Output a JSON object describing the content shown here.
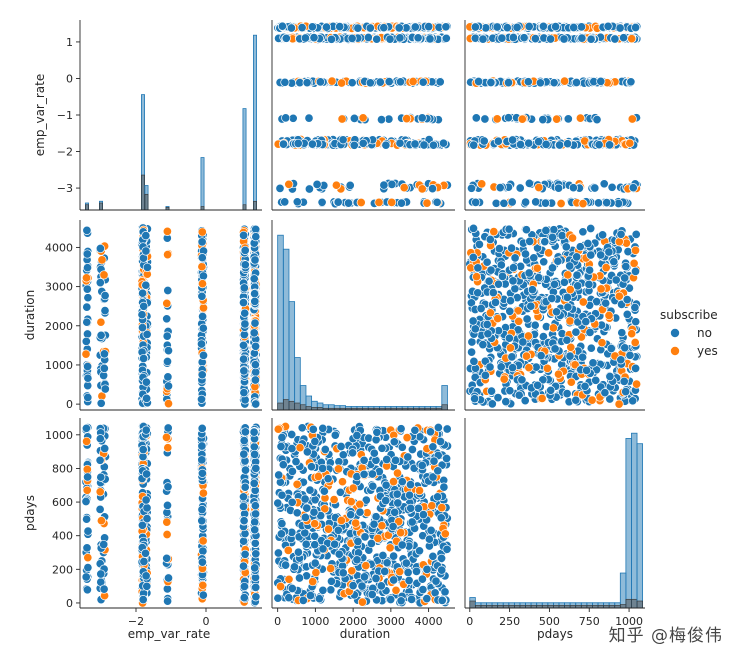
{
  "colors": {
    "no": "#1f77b4",
    "yes": "#ff7f0e",
    "axis": "#262626"
  },
  "watermark": "知乎 @梅俊伟",
  "chart_data": {
    "type": "scatter",
    "kind": "pairplot",
    "variables": [
      "emp_var_rate",
      "duration",
      "pdays"
    ],
    "hue": "subscribe",
    "legend": {
      "title": "subscribe",
      "entries": [
        {
          "label": "no",
          "color": "#1f77b4"
        },
        {
          "label": "yes",
          "color": "#ff7f0e"
        }
      ],
      "placement": "center-right"
    },
    "axes": {
      "emp_var_rate": {
        "label": "emp_var_rate",
        "range": [
          -3.6,
          1.6
        ],
        "ticks": [
          -3,
          -2,
          -1,
          0,
          1
        ],
        "tick_labels": [
          "−3",
          "−2",
          "−1",
          "0",
          "1"
        ],
        "bottom_ticks": [
          -2,
          0
        ],
        "bottom_tick_labels": [
          "−2",
          "0"
        ],
        "levels": [
          -3.4,
          -3.0,
          -2.9,
          -1.8,
          -1.7,
          -1.1,
          -0.1,
          1.1,
          1.4
        ]
      },
      "duration": {
        "label": "duration",
        "range": [
          -150,
          4700
        ],
        "ticks": [
          0,
          1000,
          2000,
          3000,
          4000
        ],
        "tick_labels": [
          "0",
          "1000",
          "2000",
          "3000",
          "4000"
        ],
        "max": 4500
      },
      "pdays": {
        "label": "pdays",
        "range": [
          -30,
          1100
        ],
        "ticks": [
          0,
          200,
          400,
          600,
          800,
          1000
        ],
        "tick_labels": [
          "0",
          "200",
          "400",
          "600",
          "800",
          "1000"
        ],
        "bottom_ticks": [
          0,
          250,
          500,
          750,
          1000
        ],
        "bottom_tick_labels": [
          "0",
          "250",
          "500",
          "750",
          "1000"
        ],
        "max": 1050
      }
    },
    "histograms": {
      "emp_var_rate": {
        "bins": [
          -3.4,
          -3.0,
          -2.9,
          -1.8,
          -1.7,
          -1.1,
          -0.2,
          -0.1,
          1.1,
          1.4
        ],
        "no_height_frac": [
          0.04,
          0.05,
          0.0,
          0.66,
          0.14,
          0.02,
          0.0,
          0.3,
          0.58,
          1.0
        ],
        "yes_height_frac": [
          0.03,
          0.04,
          0.0,
          0.2,
          0.09,
          0.015,
          0.0,
          0.02,
          0.03,
          0.05
        ]
      },
      "duration": {
        "bins_start": 0,
        "bin_width": 150,
        "no_height_frac": [
          1.0,
          0.92,
          0.62,
          0.3,
          0.14,
          0.08,
          0.05,
          0.04,
          0.03,
          0.03,
          0.025,
          0.025,
          0.02,
          0.02,
          0.02,
          0.02,
          0.02,
          0.02,
          0.02,
          0.02,
          0.02,
          0.02,
          0.02,
          0.02,
          0.02,
          0.02,
          0.02,
          0.02,
          0.02,
          0.14
        ],
        "yes_height_frac": [
          0.04,
          0.06,
          0.05,
          0.04,
          0.03,
          0.02,
          0.015,
          0.015,
          0.01,
          0.01,
          0.01,
          0.01,
          0.01,
          0.01,
          0.01,
          0.01,
          0.01,
          0.01,
          0.01,
          0.01,
          0.01,
          0.01,
          0.01,
          0.01,
          0.01,
          0.01,
          0.01,
          0.01,
          0.01,
          0.03
        ]
      },
      "pdays": {
        "bins_start": 0,
        "bin_width": 35,
        "no_height_frac": [
          0.06,
          0.03,
          0.03,
          0.03,
          0.03,
          0.03,
          0.03,
          0.03,
          0.03,
          0.03,
          0.03,
          0.03,
          0.03,
          0.03,
          0.03,
          0.03,
          0.03,
          0.03,
          0.03,
          0.03,
          0.03,
          0.03,
          0.03,
          0.03,
          0.03,
          0.03,
          0.03,
          0.2,
          0.97,
          1.0,
          0.94
        ],
        "yes_height_frac": [
          0.04,
          0.015,
          0.015,
          0.015,
          0.015,
          0.015,
          0.015,
          0.015,
          0.015,
          0.015,
          0.015,
          0.015,
          0.015,
          0.015,
          0.015,
          0.015,
          0.015,
          0.015,
          0.015,
          0.015,
          0.015,
          0.015,
          0.015,
          0.015,
          0.015,
          0.015,
          0.015,
          0.02,
          0.05,
          0.05,
          0.04
        ]
      }
    },
    "scatter_note": "Dense point clouds: emp_var_rate takes discrete levels; duration 0-4500 and pdays 0-1050 roughly uniform; mostly 'no' with scattered 'yes'."
  }
}
